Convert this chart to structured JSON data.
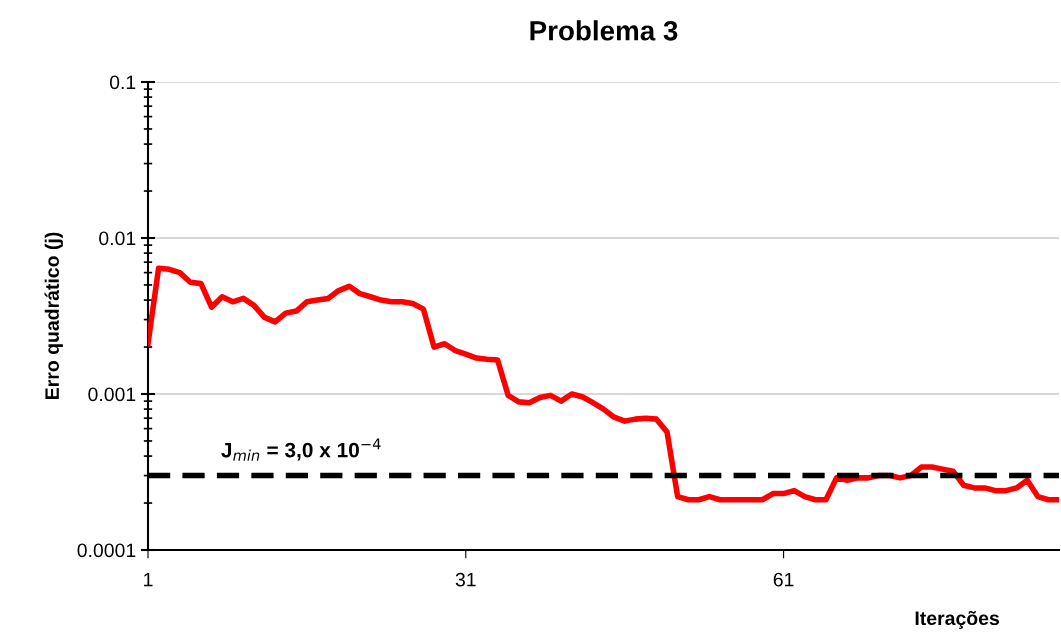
{
  "chart_data": {
    "type": "line",
    "title": "Problema 3",
    "xlabel": "Iterações",
    "ylabel": "Erro quadrático (j)",
    "x": [
      1,
      2,
      3,
      4,
      5,
      6,
      7,
      8,
      9,
      10,
      11,
      12,
      13,
      14,
      15,
      16,
      17,
      18,
      19,
      20,
      21,
      22,
      23,
      24,
      25,
      26,
      27,
      28,
      29,
      30,
      31,
      32,
      33,
      34,
      35,
      36,
      37,
      38,
      39,
      40,
      41,
      42,
      43,
      44,
      45,
      46,
      47,
      48,
      49,
      50,
      51,
      52,
      53,
      54,
      55,
      56,
      57,
      58,
      59,
      60,
      61,
      62,
      63,
      64,
      65,
      66,
      67,
      68,
      69,
      70,
      71,
      72,
      73,
      74,
      75,
      76,
      77,
      78,
      79,
      80,
      81,
      82,
      83,
      84,
      85,
      86,
      87
    ],
    "series": [
      {
        "color": "#ff0000",
        "values": [
          0.0021,
          0.0064,
          0.0063,
          0.006,
          0.0052,
          0.0051,
          0.0036,
          0.0042,
          0.0039,
          0.0041,
          0.0037,
          0.0031,
          0.0029,
          0.0033,
          0.0034,
          0.0039,
          0.004,
          0.0041,
          0.0046,
          0.0049,
          0.0044,
          0.0042,
          0.004,
          0.0039,
          0.0039,
          0.0038,
          0.0035,
          0.002,
          0.0021,
          0.0019,
          0.0018,
          0.0017,
          0.00167,
          0.00165,
          0.00098,
          0.00089,
          0.00088,
          0.00095,
          0.00098,
          0.0009,
          0.001,
          0.00096,
          0.00088,
          0.0008,
          0.00071,
          0.00067,
          0.00069,
          0.0007,
          0.00069,
          0.00057,
          0.00022,
          0.00021,
          0.00021,
          0.00022,
          0.00021,
          0.00021,
          0.00021,
          0.00021,
          0.00021,
          0.00023,
          0.00023,
          0.00024,
          0.00022,
          0.00021,
          0.00021,
          0.00029,
          0.00028,
          0.00029,
          0.00029,
          0.0003,
          0.0003,
          0.00029,
          0.0003,
          0.00034,
          0.00034,
          0.00033,
          0.00032,
          0.00026,
          0.00025,
          0.00025,
          0.00024,
          0.00024,
          0.00025,
          0.00028,
          0.00022,
          0.00021,
          0.00021
        ]
      }
    ],
    "log": "y",
    "xlim": [
      1,
      87
    ],
    "xticks": [
      1,
      31,
      61
    ],
    "ylim": [
      0.0001,
      0.1
    ],
    "yticks": [
      0.0001,
      0.001,
      0.01,
      0.1
    ],
    "grid": "y",
    "legend": false,
    "marker": "none",
    "line_style": "solid",
    "annotations": [
      "J$_{min}$ = 3,0 x 10$^{−4}$"
    ],
    "ref_lines": [
      {
        "axis": "y",
        "value": 0.0003,
        "color": "#000000",
        "line_style": "dashed"
      }
    ]
  }
}
